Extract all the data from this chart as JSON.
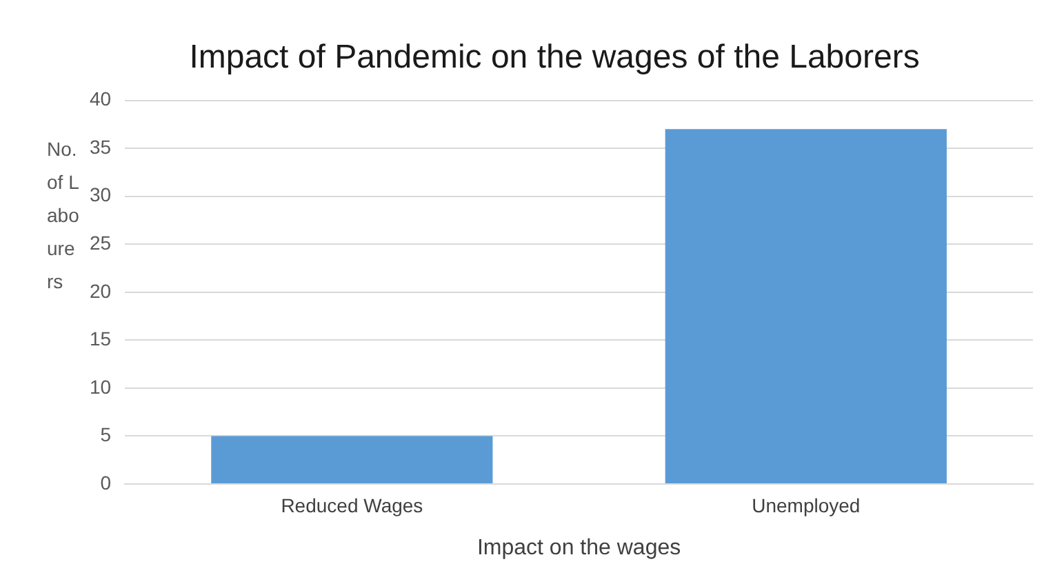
{
  "chart_data": {
    "type": "bar",
    "title": "Impact of Pandemic on the wages of the Laborers",
    "xlabel": "Impact on the wages",
    "ylabel": "No. of Labourers",
    "categories": [
      "Reduced Wages",
      "Unemployed"
    ],
    "values": [
      5,
      37
    ],
    "color": "#5b9bd5",
    "ylim": [
      0,
      40
    ],
    "yticks": [
      0,
      5,
      10,
      15,
      20,
      25,
      30,
      35,
      40
    ],
    "grid": "y"
  }
}
